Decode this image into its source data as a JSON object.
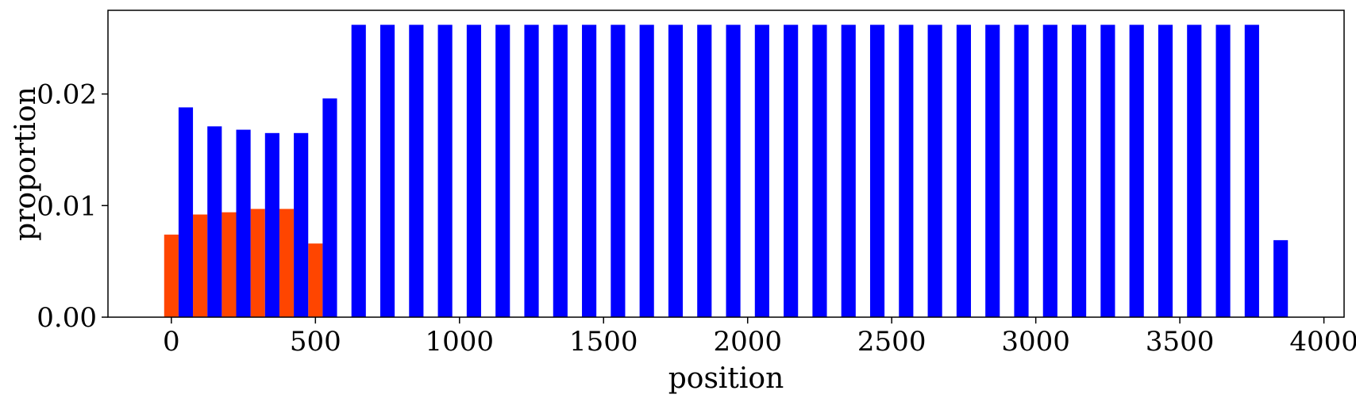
{
  "chart_data": {
    "type": "bar",
    "xlabel": "position",
    "ylabel": "proportion",
    "xlim": [
      -220,
      4070
    ],
    "ylim": [
      0,
      0.0275
    ],
    "xticks": [
      "0",
      "500",
      "1000",
      "1500",
      "2000",
      "2500",
      "3000",
      "3500",
      "4000"
    ],
    "xtick_values": [
      0,
      500,
      1000,
      1500,
      2000,
      2500,
      3000,
      3500,
      4000
    ],
    "yticks": [
      "0.00",
      "0.01",
      "0.02"
    ],
    "ytick_values": [
      0,
      0.01,
      0.02
    ],
    "bar_width": 50,
    "grid": false,
    "series": [
      {
        "color": "#ff4500",
        "x": [
          0,
          100,
          200,
          300,
          400,
          500
        ],
        "values": [
          0.0074,
          0.0092,
          0.0094,
          0.0097,
          0.0097,
          0.0066
        ]
      },
      {
        "color": "#0000ff",
        "x": [
          50,
          150,
          250,
          350,
          450,
          550,
          650,
          750,
          850,
          950,
          1050,
          1150,
          1250,
          1350,
          1450,
          1550,
          1650,
          1750,
          1850,
          1950,
          2050,
          2150,
          2250,
          2350,
          2450,
          2550,
          2650,
          2750,
          2850,
          2950,
          3050,
          3150,
          3250,
          3350,
          3450,
          3550,
          3650,
          3750,
          3850
        ],
        "values": [
          0.0188,
          0.0171,
          0.0168,
          0.0165,
          0.0165,
          0.0196,
          0.0262,
          0.0262,
          0.0262,
          0.0262,
          0.0262,
          0.0262,
          0.0262,
          0.0262,
          0.0262,
          0.0262,
          0.0262,
          0.0262,
          0.0262,
          0.0262,
          0.0262,
          0.0262,
          0.0262,
          0.0262,
          0.0262,
          0.0262,
          0.0262,
          0.0262,
          0.0262,
          0.0262,
          0.0262,
          0.0262,
          0.0262,
          0.0262,
          0.0262,
          0.0262,
          0.0262,
          0.0262,
          0.0069
        ]
      }
    ]
  }
}
